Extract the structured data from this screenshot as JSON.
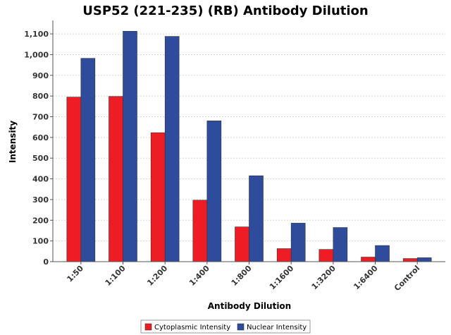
{
  "chart_data": {
    "type": "bar",
    "title": "USP52 (221-235) (RB) Antibody Dilution",
    "xlabel": "Antibody Dilution",
    "ylabel": "Intensity",
    "categories": [
      "1:50",
      "1:100",
      "1:200",
      "1:400",
      "1:800",
      "1:1600",
      "1:3200",
      "1:6400",
      "Control"
    ],
    "series": [
      {
        "name": "Cytoplasmic Intensity",
        "color": "#ee1c24",
        "values": [
          795,
          798,
          623,
          297,
          168,
          63,
          59,
          22,
          15
        ]
      },
      {
        "name": "Nuclear Intensity",
        "color": "#2e4b9c",
        "values": [
          982,
          1113,
          1088,
          680,
          415,
          186,
          165,
          78,
          19
        ]
      }
    ],
    "ylim": [
      0,
      1165
    ],
    "yticks": [
      0,
      100,
      200,
      300,
      400,
      500,
      600,
      700,
      800,
      900,
      1000,
      1100
    ],
    "ytick_labels": [
      "0",
      "100",
      "200",
      "300",
      "400",
      "500",
      "600",
      "700",
      "800",
      "900",
      "1,000",
      "1,100"
    ],
    "grid": true,
    "legend_position": "bottom-center"
  }
}
